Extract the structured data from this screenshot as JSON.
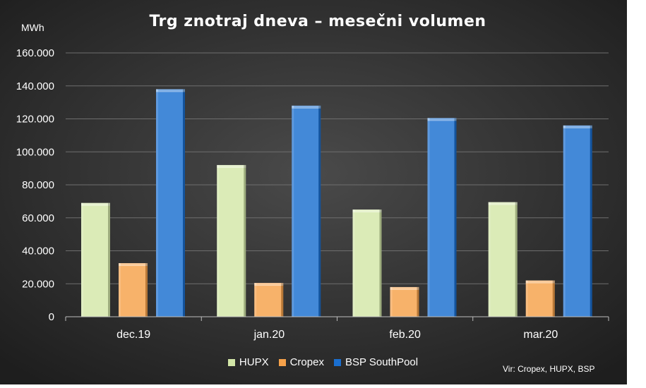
{
  "chart_data": {
    "type": "bar",
    "title": "Trg znotraj dneva – mesečni volumen",
    "ylabel": "MWh",
    "categories": [
      "dec.19",
      "jan.20",
      "feb.20",
      "mar.20"
    ],
    "series": [
      {
        "name": "HUPX",
        "values": [
          69000,
          92000,
          65000,
          69500
        ],
        "color": "#d3e7a8"
      },
      {
        "name": "Cropex",
        "values": [
          32500,
          20500,
          18000,
          22000
        ],
        "color": "#f6a14a"
      },
      {
        "name": "BSP SouthPool",
        "values": [
          138000,
          128000,
          120500,
          116000
        ],
        "color": "#1a6fd0"
      }
    ],
    "ylim": [
      0,
      160000
    ],
    "yticks": [
      0,
      20000,
      40000,
      60000,
      80000,
      100000,
      120000,
      140000,
      160000
    ],
    "ytick_labels": [
      "0",
      "20.000",
      "40.000",
      "60.000",
      "80.000",
      "100.000",
      "120.000",
      "140.000",
      "160.000"
    ],
    "grid": true,
    "legend_position": "bottom",
    "source": "Vir: Cropex, HUPX, BSP",
    "background": "#3a3a3a"
  }
}
